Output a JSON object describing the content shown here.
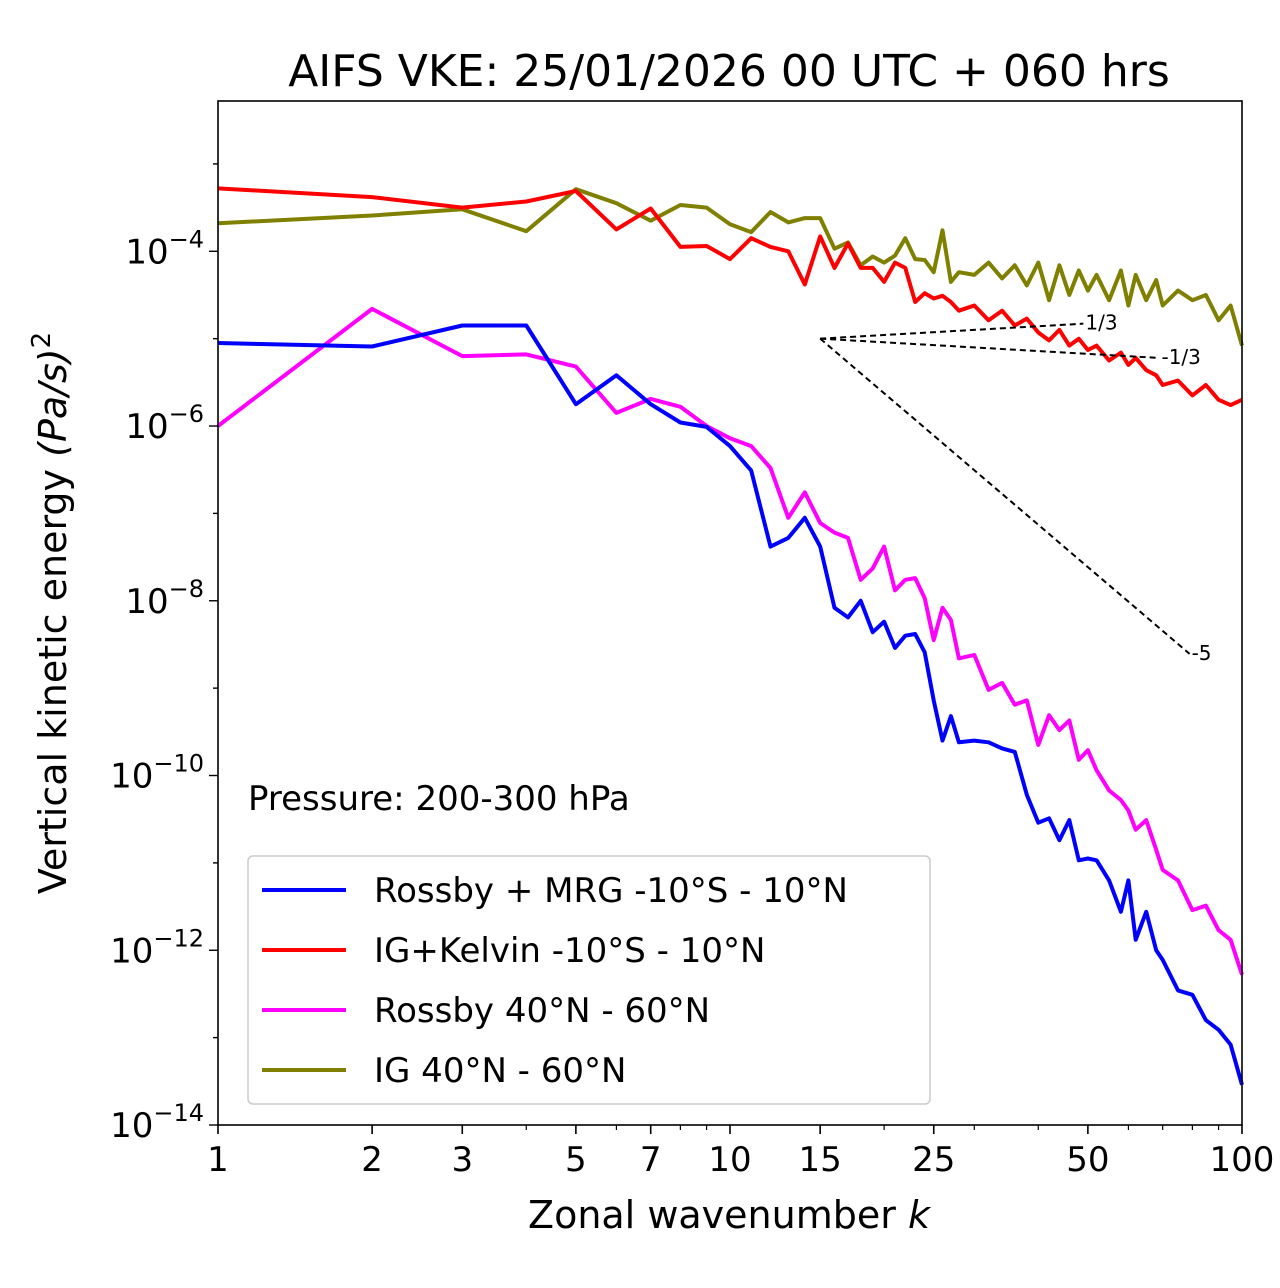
{
  "chart_data": {
    "type": "line",
    "title": "AIFS VKE: 25/01/2026 00 UTC + 060 hrs",
    "xlabel": "Zonal wavenumber",
    "xlabel_var": "k",
    "ylabel": "Vertical kinetic energy",
    "ylabel_units": "(Pa/s)",
    "ylabel_units_exp": "2",
    "xscale": "log",
    "yscale": "log",
    "xlim": [
      1,
      100
    ],
    "ylim_log10": [
      -14,
      -2.28
    ],
    "x_ticks": [
      1,
      2,
      3,
      5,
      7,
      10,
      15,
      25,
      50,
      100
    ],
    "x_tick_labels": [
      "1",
      "2",
      "3",
      "5",
      "7",
      "10",
      "15",
      "25",
      "50",
      "100"
    ],
    "x_minor_ticks": [
      4,
      6,
      8,
      9,
      20,
      30,
      40,
      60,
      70,
      80,
      90
    ],
    "y_ticks_log10": [
      -4,
      -6,
      -8,
      -10,
      -12,
      -14
    ],
    "y_tick_base": "10",
    "y_tick_exponents": [
      "−4",
      "−6",
      "−8",
      "−10",
      "−12",
      "−14"
    ],
    "annotation": "Pressure: 200-300 hPa",
    "legend_position": "lower-left",
    "y_values_are": "log10",
    "x": [
      1,
      2,
      3,
      4,
      5,
      6,
      7,
      8,
      9,
      10,
      11,
      12,
      13,
      14,
      15,
      16,
      17,
      18,
      19,
      20,
      21,
      22,
      23,
      24,
      25,
      26,
      27,
      28,
      30,
      32,
      34,
      36,
      38,
      40,
      42,
      44,
      46,
      48,
      50,
      52,
      55,
      58,
      60,
      62,
      65,
      68,
      70,
      75,
      80,
      85,
      90,
      95,
      100
    ],
    "series": [
      {
        "name": "Rossby + MRG -10°S - 10°N",
        "color": "#0000ff",
        "log10_y": [
          -5.05,
          -5.09,
          -4.85,
          -4.85,
          -5.75,
          -5.42,
          -5.75,
          -5.96,
          -6.01,
          -6.23,
          -6.51,
          -7.38,
          -7.28,
          -7.05,
          -7.38,
          -8.08,
          -8.19,
          -8.0,
          -8.36,
          -8.24,
          -8.54,
          -8.4,
          -8.38,
          -8.59,
          -9.14,
          -9.6,
          -9.32,
          -9.62,
          -9.6,
          -9.62,
          -9.69,
          -9.73,
          -10.22,
          -10.54,
          -10.49,
          -10.74,
          -10.51,
          -10.97,
          -10.95,
          -10.97,
          -11.2,
          -11.56,
          -11.2,
          -11.88,
          -11.56,
          -12.0,
          -12.11,
          -12.46,
          -12.51,
          -12.8,
          -12.91,
          -13.08,
          -13.54
        ]
      },
      {
        "name": "IG+Kelvin -10°S - 10°N",
        "color": "#ff0000",
        "log10_y": [
          -3.28,
          -3.38,
          -3.5,
          -3.43,
          -3.31,
          -3.75,
          -3.51,
          -3.95,
          -3.94,
          -4.09,
          -3.85,
          -3.95,
          -4.0,
          -4.38,
          -3.83,
          -4.19,
          -3.91,
          -4.19,
          -4.19,
          -4.35,
          -4.13,
          -4.19,
          -4.58,
          -4.48,
          -4.54,
          -4.51,
          -4.58,
          -4.68,
          -4.62,
          -4.79,
          -4.68,
          -4.85,
          -4.77,
          -4.93,
          -5.02,
          -4.9,
          -5.08,
          -5.0,
          -5.13,
          -5.08,
          -5.25,
          -5.16,
          -5.3,
          -5.22,
          -5.36,
          -5.42,
          -5.53,
          -5.48,
          -5.65,
          -5.53,
          -5.7,
          -5.76,
          -5.7
        ]
      },
      {
        "name": "Rossby 40°N - 60°N",
        "color": "#ff00ff",
        "log10_y": [
          -6.0,
          -4.66,
          -5.2,
          -5.18,
          -5.32,
          -5.85,
          -5.69,
          -5.78,
          -6.0,
          -6.14,
          -6.23,
          -6.48,
          -7.05,
          -6.76,
          -7.11,
          -7.22,
          -7.28,
          -7.76,
          -7.63,
          -7.38,
          -7.88,
          -7.76,
          -7.74,
          -7.97,
          -8.45,
          -8.08,
          -8.22,
          -8.66,
          -8.62,
          -9.02,
          -8.94,
          -9.19,
          -9.14,
          -9.65,
          -9.31,
          -9.48,
          -9.37,
          -9.82,
          -9.71,
          -9.94,
          -10.17,
          -10.28,
          -10.4,
          -10.62,
          -10.51,
          -10.85,
          -11.08,
          -11.2,
          -11.54,
          -11.49,
          -11.77,
          -11.88,
          -12.28
        ]
      },
      {
        "name": "IG 40°N - 60°N",
        "color": "#808000",
        "log10_y": [
          -3.68,
          -3.59,
          -3.52,
          -3.77,
          -3.29,
          -3.45,
          -3.65,
          -3.47,
          -3.5,
          -3.69,
          -3.78,
          -3.55,
          -3.67,
          -3.62,
          -3.62,
          -3.97,
          -3.9,
          -4.16,
          -4.06,
          -4.13,
          -4.05,
          -3.85,
          -4.09,
          -4.1,
          -4.24,
          -3.76,
          -4.35,
          -4.24,
          -4.27,
          -4.13,
          -4.31,
          -4.16,
          -4.39,
          -4.13,
          -4.56,
          -4.16,
          -4.5,
          -4.22,
          -4.45,
          -4.27,
          -4.56,
          -4.22,
          -4.62,
          -4.27,
          -4.56,
          -4.33,
          -4.62,
          -4.45,
          -4.56,
          -4.5,
          -4.79,
          -4.62,
          -5.08
        ]
      }
    ],
    "reference_lines": [
      {
        "label": "1/3",
        "slope": 0.3333,
        "x0": 15,
        "log10_y0": -5.0,
        "x1": 49
      },
      {
        "label": "-1/3",
        "slope": -0.3333,
        "x0": 15,
        "log10_y0": -5.0,
        "x1": 69
      },
      {
        "label": "-5",
        "slope": -5,
        "x0": 15,
        "log10_y0": -5.0,
        "x1": 79
      }
    ]
  }
}
